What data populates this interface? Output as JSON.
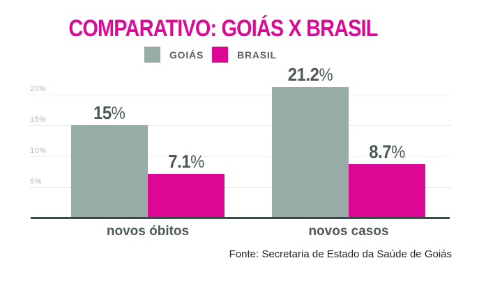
{
  "title": "COMPARATIVO: GOIÁS X BRASIL",
  "legend": [
    {
      "label": "GOIÁS",
      "color": "#97ABA7"
    },
    {
      "label": "BRASIL",
      "color": "#DC0795"
    }
  ],
  "chart_data": {
    "type": "bar",
    "title": "COMPARATIVO: GOIÁS X BRASIL",
    "categories": [
      "novos óbitos",
      "novos casos"
    ],
    "series": [
      {
        "name": "GOIÁS",
        "values": [
          15,
          21.2
        ],
        "color": "#97ABA7"
      },
      {
        "name": "BRASIL",
        "values": [
          7.1,
          8.7
        ],
        "color": "#DC0795"
      }
    ],
    "xlabel": "",
    "ylabel": "",
    "ylim": [
      0,
      22.5
    ],
    "grid": true,
    "legend_position": "top",
    "yticks": [
      {
        "value": 5,
        "label": "5%"
      },
      {
        "value": 10,
        "label": "10%"
      },
      {
        "value": 15,
        "label": "15%"
      },
      {
        "value": 20,
        "label": "20%"
      }
    ]
  },
  "bars": [
    {
      "series": "GOIÁS",
      "category": "novos óbitos",
      "num": "15",
      "sym": "%"
    },
    {
      "series": "BRASIL",
      "category": "novos óbitos",
      "num": "7.1",
      "sym": "%"
    },
    {
      "series": "GOIÁS",
      "category": "novos casos",
      "num": "21.2",
      "sym": "%"
    },
    {
      "series": "BRASIL",
      "category": "novos casos",
      "num": "8.7",
      "sym": "%"
    }
  ],
  "source": "Fonte: Secretaria de Estado da Saúde de Goiás",
  "colors": {
    "title": "#DB0A96",
    "goias_bar": "#97ABA7",
    "brasil_bar": "#DC0795",
    "axis_line": "#3E4A49",
    "value_label": "#4D5856",
    "category_label": "#4D5A57",
    "ytick_label": "#AFC0BB",
    "gridline": "#E9EEEC",
    "source_text": "#1B222B",
    "background": "#FFFFFF"
  }
}
